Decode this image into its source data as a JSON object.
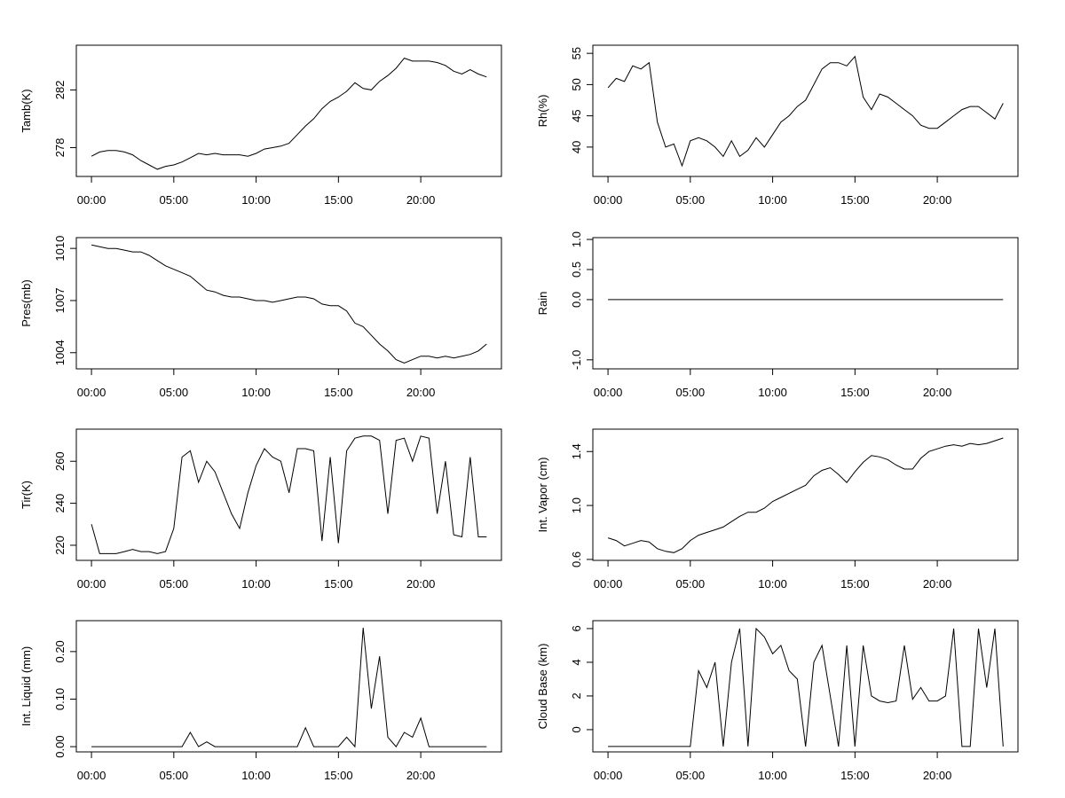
{
  "chart_data": [
    {
      "type": "line",
      "ylabel": "Tamb(K)",
      "color": "#000000",
      "x": [
        0,
        0.5,
        1,
        1.5,
        2,
        2.5,
        3,
        3.5,
        4,
        4.5,
        5,
        5.5,
        6,
        6.5,
        7,
        7.5,
        8,
        8.5,
        9,
        9.5,
        10,
        10.5,
        11,
        11.5,
        12,
        12.5,
        13,
        13.5,
        14,
        14.5,
        15,
        15.5,
        16,
        16.5,
        17,
        17.5,
        18,
        18.5,
        19,
        19.5,
        20,
        20.5,
        21,
        21.5,
        22,
        22.5,
        23,
        23.5,
        24
      ],
      "values": [
        277.4,
        277.7,
        277.8,
        277.8,
        277.7,
        277.5,
        277.1,
        276.8,
        276.5,
        276.7,
        276.8,
        277.0,
        277.3,
        277.6,
        277.5,
        277.6,
        277.5,
        277.5,
        277.5,
        277.4,
        277.6,
        277.9,
        278.0,
        278.1,
        278.3,
        278.9,
        279.5,
        280.0,
        280.7,
        281.2,
        281.5,
        281.9,
        282.5,
        282.1,
        282.0,
        282.6,
        283.0,
        283.5,
        284.2,
        284.0,
        284.0,
        284.0,
        283.9,
        283.7,
        283.3,
        283.1,
        283.4,
        283.1,
        282.9
      ],
      "xlim": [
        -0.92,
        24.9
      ],
      "xticks": [
        {
          "value": 0,
          "label": "00:00"
        },
        {
          "value": 5,
          "label": "05:00"
        },
        {
          "value": 10,
          "label": "10:00"
        },
        {
          "value": 15,
          "label": "15:00"
        },
        {
          "value": 20,
          "label": "20:00"
        }
      ],
      "ylim": [
        276.0,
        285.1
      ],
      "yticks": [
        278,
        282
      ]
    },
    {
      "type": "line",
      "ylabel": "Rh(%)",
      "color": "#000000",
      "x": [
        0,
        0.5,
        1,
        1.5,
        2,
        2.5,
        3,
        3.5,
        4,
        4.5,
        5,
        5.5,
        6,
        6.5,
        7,
        7.5,
        8,
        8.5,
        9,
        9.5,
        10,
        10.5,
        11,
        11.5,
        12,
        12.5,
        13,
        13.5,
        14,
        14.5,
        15,
        15.5,
        16,
        16.5,
        17,
        17.5,
        18,
        18.5,
        19,
        19.5,
        20,
        20.5,
        21,
        21.5,
        22,
        22.5,
        23,
        23.5,
        24
      ],
      "values": [
        49.5,
        51,
        50.5,
        53,
        52.5,
        53.5,
        44,
        40,
        40.5,
        37,
        41,
        41.5,
        41,
        40,
        38.5,
        41,
        38.5,
        39.5,
        41.5,
        40,
        42,
        44,
        45,
        46.5,
        47.5,
        50,
        52.5,
        53.5,
        53.5,
        53,
        54.5,
        48,
        46,
        48.5,
        48,
        47,
        46,
        45,
        43.5,
        43,
        43,
        44,
        45,
        46,
        46.5,
        46.5,
        45.5,
        44.5,
        47
      ],
      "xlim": [
        -0.92,
        24.9
      ],
      "xticks": [
        {
          "value": 0,
          "label": "00:00"
        },
        {
          "value": 5,
          "label": "05:00"
        },
        {
          "value": 10,
          "label": "10:00"
        },
        {
          "value": 15,
          "label": "15:00"
        },
        {
          "value": 20,
          "label": "20:00"
        }
      ],
      "ylim": [
        35.3,
        56.3
      ],
      "yticks": [
        40,
        45,
        50,
        55
      ]
    },
    {
      "type": "line",
      "ylabel": "Pres(mb)",
      "color": "#000000",
      "x": [
        0,
        0.5,
        1,
        1.5,
        2,
        2.5,
        3,
        3.5,
        4,
        4.5,
        5,
        5.5,
        6,
        6.5,
        7,
        7.5,
        8,
        8.5,
        9,
        9.5,
        10,
        10.5,
        11,
        11.5,
        12,
        12.5,
        13,
        13.5,
        14,
        14.5,
        15,
        15.5,
        16,
        16.5,
        17,
        17.5,
        18,
        18.5,
        19,
        19.5,
        20,
        20.5,
        21,
        21.5,
        22,
        22.5,
        23,
        23.5,
        24
      ],
      "values": [
        1010.2,
        1010.1,
        1010.0,
        1010.0,
        1009.9,
        1009.8,
        1009.8,
        1009.6,
        1009.3,
        1009.0,
        1008.8,
        1008.6,
        1008.4,
        1008.0,
        1007.6,
        1007.5,
        1007.3,
        1007.2,
        1007.2,
        1007.1,
        1007.0,
        1007.0,
        1006.9,
        1007.0,
        1007.1,
        1007.2,
        1007.2,
        1007.1,
        1006.8,
        1006.7,
        1006.7,
        1006.4,
        1005.7,
        1005.5,
        1005.0,
        1004.5,
        1004.1,
        1003.6,
        1003.4,
        1003.6,
        1003.8,
        1003.8,
        1003.7,
        1003.8,
        1003.7,
        1003.8,
        1003.9,
        1004.1,
        1004.5
      ],
      "xlim": [
        -0.92,
        24.9
      ],
      "xticks": [
        {
          "value": 0,
          "label": "00:00"
        },
        {
          "value": 5,
          "label": "05:00"
        },
        {
          "value": 10,
          "label": "10:00"
        },
        {
          "value": 15,
          "label": "15:00"
        },
        {
          "value": 20,
          "label": "20:00"
        }
      ],
      "ylim": [
        1003.07,
        1010.62
      ],
      "yticks": [
        1004,
        1007,
        1010
      ]
    },
    {
      "type": "line",
      "ylabel": "Rain",
      "color": "#000000",
      "x": [
        0,
        0.5,
        1,
        1.5,
        2,
        2.5,
        3,
        3.5,
        4,
        4.5,
        5,
        5.5,
        6,
        6.5,
        7,
        7.5,
        8,
        8.5,
        9,
        9.5,
        10,
        10.5,
        11,
        11.5,
        12,
        12.5,
        13,
        13.5,
        14,
        14.5,
        15,
        15.5,
        16,
        16.5,
        17,
        17.5,
        18,
        18.5,
        19,
        19.5,
        20,
        20.5,
        21,
        21.5,
        22,
        22.5,
        23,
        23.5,
        24
      ],
      "values": [
        0,
        0,
        0,
        0,
        0,
        0,
        0,
        0,
        0,
        0,
        0,
        0,
        0,
        0,
        0,
        0,
        0,
        0,
        0,
        0,
        0,
        0,
        0,
        0,
        0,
        0,
        0,
        0,
        0,
        0,
        0,
        0,
        0,
        0,
        0,
        0,
        0,
        0,
        0,
        0,
        0,
        0,
        0,
        0,
        0,
        0,
        0,
        0,
        0
      ],
      "xlim": [
        -0.92,
        24.9
      ],
      "xticks": [
        {
          "value": 0,
          "label": "00:00"
        },
        {
          "value": 5,
          "label": "05:00"
        },
        {
          "value": 10,
          "label": "10:00"
        },
        {
          "value": 15,
          "label": "15:00"
        },
        {
          "value": 20,
          "label": "20:00"
        }
      ],
      "ylim": [
        -1.15,
        1.03
      ],
      "yticks": [
        {
          "value": -1,
          "label": "-1.0"
        },
        {
          "value": 0,
          "label": "0.0"
        },
        {
          "value": 0.5,
          "label": "0.5"
        },
        {
          "value": 1,
          "label": "1.0"
        }
      ]
    },
    {
      "type": "line",
      "ylabel": "Tir(K)",
      "color": "#000000",
      "x": [
        0,
        0.5,
        1,
        1.5,
        2,
        2.5,
        3,
        3.5,
        4,
        4.5,
        5,
        5.5,
        6,
        6.5,
        7,
        7.5,
        8,
        8.5,
        9,
        9.5,
        10,
        10.5,
        11,
        11.5,
        12,
        12.5,
        13,
        13.5,
        14,
        14.5,
        15,
        15.5,
        16,
        16.5,
        17,
        17.5,
        18,
        18.5,
        19,
        19.5,
        20,
        20.5,
        21,
        21.5,
        22,
        22.5,
        23,
        23.5,
        24
      ],
      "values": [
        230,
        216,
        216,
        216,
        217,
        218,
        217,
        217,
        216,
        217,
        228,
        262,
        265,
        250,
        260,
        255,
        245,
        235,
        228,
        245,
        258,
        266,
        262,
        260,
        245,
        266,
        266,
        265,
        222,
        262,
        221,
        265,
        271,
        272,
        272,
        270,
        235,
        270,
        271,
        260,
        272,
        271,
        235,
        260,
        225,
        224,
        262,
        224,
        224
      ],
      "xlim": [
        -0.92,
        24.9
      ],
      "xticks": [
        {
          "value": 0,
          "label": "00:00"
        },
        {
          "value": 5,
          "label": "05:00"
        },
        {
          "value": 10,
          "label": "10:00"
        },
        {
          "value": 15,
          "label": "15:00"
        },
        {
          "value": 20,
          "label": "20:00"
        }
      ],
      "ylim": [
        212.8,
        275.3
      ],
      "yticks": [
        220,
        240,
        260
      ]
    },
    {
      "type": "line",
      "ylabel": "Int. Vapor (cm)",
      "color": "#000000",
      "x": [
        0,
        0.5,
        1,
        1.5,
        2,
        2.5,
        3,
        3.5,
        4,
        4.5,
        5,
        5.5,
        6,
        6.5,
        7,
        7.5,
        8,
        8.5,
        9,
        9.5,
        10,
        10.5,
        11,
        11.5,
        12,
        12.5,
        13,
        13.5,
        14,
        14.5,
        15,
        15.5,
        16,
        16.5,
        17,
        17.5,
        18,
        18.5,
        19,
        19.5,
        20,
        20.5,
        21,
        21.5,
        22,
        22.5,
        23,
        23.5,
        24
      ],
      "values": [
        0.76,
        0.74,
        0.7,
        0.72,
        0.74,
        0.73,
        0.68,
        0.66,
        0.65,
        0.68,
        0.74,
        0.78,
        0.8,
        0.82,
        0.84,
        0.88,
        0.92,
        0.95,
        0.95,
        0.98,
        1.03,
        1.06,
        1.09,
        1.12,
        1.15,
        1.22,
        1.26,
        1.28,
        1.23,
        1.17,
        1.25,
        1.32,
        1.37,
        1.36,
        1.34,
        1.3,
        1.27,
        1.27,
        1.35,
        1.4,
        1.42,
        1.44,
        1.45,
        1.44,
        1.46,
        1.45,
        1.46,
        1.48,
        1.5
      ],
      "xlim": [
        -0.92,
        24.9
      ],
      "xticks": [
        {
          "value": 0,
          "label": "00:00"
        },
        {
          "value": 5,
          "label": "05:00"
        },
        {
          "value": 10,
          "label": "10:00"
        },
        {
          "value": 15,
          "label": "15:00"
        },
        {
          "value": 20,
          "label": "20:00"
        }
      ],
      "ylim": [
        0.593,
        1.566
      ],
      "yticks": [
        0.6,
        {
          "value": 1,
          "label": "1.0"
        },
        1.4
      ]
    },
    {
      "type": "line",
      "ylabel": "Int. Liquid (mm)",
      "color": "#000000",
      "x": [
        0,
        0.5,
        1,
        1.5,
        2,
        2.5,
        3,
        3.5,
        4,
        4.5,
        5,
        5.5,
        6,
        6.5,
        7,
        7.5,
        8,
        8.5,
        9,
        9.5,
        10,
        10.5,
        11,
        11.5,
        12,
        12.5,
        13,
        13.5,
        14,
        14.5,
        15,
        15.5,
        16,
        16.5,
        17,
        17.5,
        18,
        18.5,
        19,
        19.5,
        20,
        20.5,
        21,
        21.5,
        22,
        22.5,
        23,
        23.5,
        24
      ],
      "values": [
        0,
        0,
        0,
        0,
        0,
        0,
        0,
        0,
        0,
        0,
        0,
        0,
        0.03,
        0,
        0.01,
        0,
        0,
        0,
        0,
        0,
        0,
        0,
        0,
        0,
        0,
        0,
        0.04,
        0,
        0,
        0,
        0,
        0.02,
        0,
        0.25,
        0.08,
        0.19,
        0.02,
        0,
        0.03,
        0.02,
        0.06,
        0,
        0,
        0,
        0,
        0,
        0,
        0,
        0
      ],
      "xlim": [
        -0.92,
        24.9
      ],
      "xticks": [
        {
          "value": 0,
          "label": "00:00"
        },
        {
          "value": 5,
          "label": "05:00"
        },
        {
          "value": 10,
          "label": "10:00"
        },
        {
          "value": 15,
          "label": "15:00"
        },
        {
          "value": 20,
          "label": "20:00"
        }
      ],
      "ylim": [
        -0.011,
        0.265
      ],
      "yticks": [
        {
          "value": 0,
          "label": "0.00"
        },
        {
          "value": 0.1,
          "label": "0.10"
        },
        {
          "value": 0.2,
          "label": "0.20"
        }
      ]
    },
    {
      "type": "line",
      "ylabel": "Cloud Base (km)",
      "color": "#000000",
      "x": [
        0,
        0.5,
        1,
        1.5,
        2,
        2.5,
        3,
        3.5,
        4,
        4.5,
        5,
        5.5,
        6,
        6.5,
        7,
        7.5,
        8,
        8.5,
        9,
        9.5,
        10,
        10.5,
        11,
        11.5,
        12,
        12.5,
        13,
        13.5,
        14,
        14.5,
        15,
        15.5,
        16,
        16.5,
        17,
        17.5,
        18,
        18.5,
        19,
        19.5,
        20,
        20.5,
        21,
        21.5,
        22,
        22.5,
        23,
        23.5,
        24
      ],
      "values": [
        -1,
        -1,
        -1,
        -1,
        -1,
        -1,
        -1,
        -1,
        -1,
        -1,
        -1,
        3.5,
        2.5,
        4,
        -1,
        4,
        6,
        -1,
        6,
        5.5,
        4.5,
        5,
        3.5,
        3,
        -1,
        4,
        5,
        2,
        -1,
        5,
        -1,
        5,
        2,
        1.7,
        1.6,
        1.7,
        5,
        1.8,
        2.5,
        1.7,
        1.7,
        2,
        6,
        -1,
        -1,
        6,
        2.5,
        6,
        -1
      ],
      "xlim": [
        -0.92,
        24.9
      ],
      "xticks": [
        {
          "value": 0,
          "label": "00:00"
        },
        {
          "value": 5,
          "label": "05:00"
        },
        {
          "value": 10,
          "label": "10:00"
        },
        {
          "value": 15,
          "label": "15:00"
        },
        {
          "value": 20,
          "label": "20:00"
        }
      ],
      "ylim": [
        -1.32,
        6.47
      ],
      "yticks": [
        0,
        2,
        4,
        6
      ]
    }
  ]
}
